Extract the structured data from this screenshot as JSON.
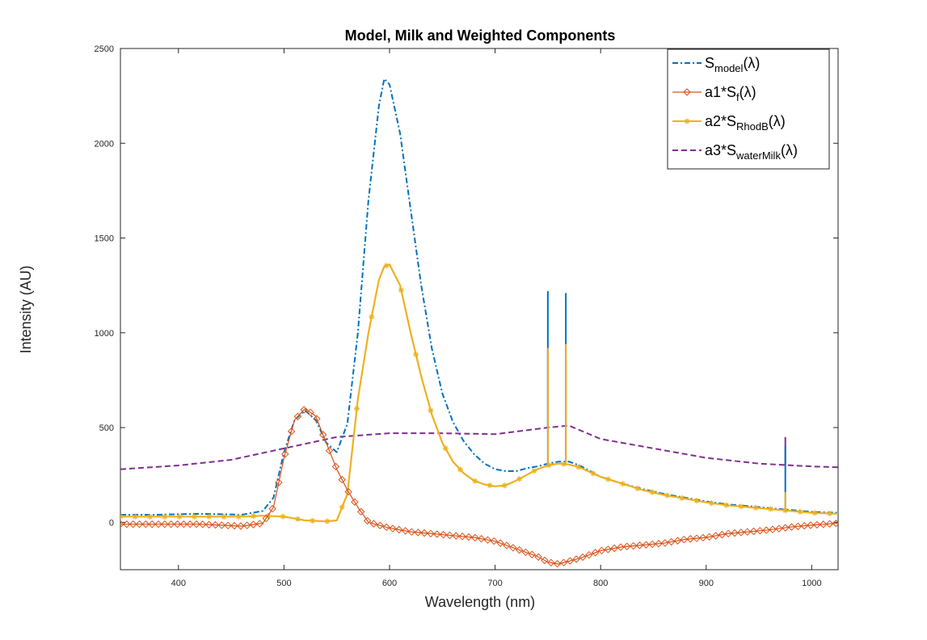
{
  "chart_data": {
    "type": "line",
    "title": "Model, Milk and Weighted Components",
    "xlabel": "Wavelength (nm)",
    "ylabel": "Intensity (AU)",
    "xlim": [
      345,
      1025
    ],
    "ylim": [
      -250,
      2500
    ],
    "xticks": [
      400,
      500,
      600,
      700,
      800,
      900,
      1000
    ],
    "yticks": [
      0,
      500,
      1000,
      1500,
      2000,
      2500
    ],
    "grid": false,
    "legend_position": "top-right",
    "series": [
      {
        "key": "model",
        "legend": {
          "base": "S",
          "sub": "model",
          "suffix": "(λ)"
        },
        "color": "#0072BD",
        "line_style": "dashdot",
        "marker": "none",
        "x": [
          345,
          380,
          420,
          460,
          480,
          490,
          500,
          510,
          520,
          530,
          540,
          550,
          560,
          570,
          580,
          590,
          595,
          600,
          610,
          620,
          630,
          640,
          650,
          660,
          670,
          680,
          690,
          700,
          710,
          720,
          730,
          740,
          750,
          760,
          770,
          780,
          790,
          800,
          820,
          840,
          860,
          880,
          900,
          920,
          940,
          960,
          980,
          1000,
          1025
        ],
        "y": [
          40,
          40,
          45,
          40,
          60,
          130,
          370,
          540,
          590,
          540,
          420,
          370,
          520,
          1000,
          1700,
          2200,
          2340,
          2310,
          2050,
          1650,
          1250,
          920,
          680,
          530,
          430,
          360,
          310,
          280,
          270,
          270,
          285,
          295,
          310,
          320,
          320,
          300,
          270,
          240,
          205,
          175,
          150,
          130,
          110,
          95,
          85,
          75,
          65,
          55,
          50
        ],
        "spikes": [
          {
            "x": 750,
            "y": 1220
          },
          {
            "x": 767,
            "y": 1210
          },
          {
            "x": 975,
            "y": 400
          }
        ]
      },
      {
        "key": "a1",
        "legend": {
          "base": "a1*S",
          "sub": "f",
          "suffix": "(λ)"
        },
        "color": "#D95319",
        "line_style": "solid",
        "marker": "diamond",
        "x": [
          345,
          380,
          420,
          460,
          480,
          490,
          500,
          510,
          520,
          530,
          540,
          550,
          560,
          570,
          580,
          600,
          620,
          640,
          660,
          680,
          700,
          720,
          740,
          750,
          760,
          780,
          800,
          820,
          840,
          860,
          880,
          900,
          920,
          940,
          960,
          980,
          1000,
          1025
        ],
        "y": [
          -10,
          -10,
          -10,
          -20,
          -5,
          80,
          340,
          540,
          600,
          560,
          420,
          280,
          170,
          80,
          0,
          -30,
          -50,
          -60,
          -70,
          -80,
          -100,
          -140,
          -180,
          -210,
          -220,
          -190,
          -150,
          -130,
          -120,
          -110,
          -90,
          -80,
          -60,
          -50,
          -40,
          -25,
          -15,
          -5
        ]
      },
      {
        "key": "a2",
        "legend": {
          "base": "a2*S",
          "sub": "RhodB",
          "suffix": "(λ)"
        },
        "color": "#EDB120",
        "line_style": "solid",
        "marker": "asterisk",
        "x": [
          345,
          380,
          420,
          460,
          480,
          500,
          520,
          540,
          550,
          560,
          570,
          580,
          590,
          595,
          600,
          610,
          620,
          630,
          640,
          650,
          660,
          670,
          680,
          690,
          700,
          710,
          720,
          730,
          740,
          750,
          760,
          770,
          780,
          790,
          800,
          820,
          840,
          860,
          880,
          900,
          920,
          940,
          960,
          980,
          1000,
          1025
        ],
        "y": [
          30,
          30,
          30,
          30,
          35,
          30,
          10,
          5,
          10,
          150,
          650,
          1000,
          1280,
          1350,
          1360,
          1250,
          1000,
          770,
          570,
          420,
          320,
          260,
          220,
          200,
          190,
          195,
          220,
          250,
          280,
          300,
          310,
          305,
          290,
          265,
          240,
          205,
          170,
          145,
          125,
          105,
          90,
          80,
          70,
          60,
          50,
          45
        ],
        "spikes": [
          {
            "x": 750,
            "y": 920
          },
          {
            "x": 767,
            "y": 940
          },
          {
            "x": 975,
            "y": 160
          }
        ]
      },
      {
        "key": "a3",
        "legend": {
          "base": "a3*S",
          "sub": "waterMilk",
          "suffix": "(λ)"
        },
        "color": "#7E2F8E",
        "line_style": "dashed",
        "marker": "none",
        "x": [
          345,
          400,
          450,
          500,
          550,
          600,
          650,
          700,
          750,
          770,
          800,
          850,
          900,
          950,
          1000,
          1025
        ],
        "y": [
          280,
          300,
          330,
          390,
          450,
          470,
          470,
          465,
          500,
          510,
          440,
          390,
          340,
          310,
          295,
          290
        ],
        "spikes": [
          {
            "x": 750,
            "y": 920
          },
          {
            "x": 767,
            "y": 860
          },
          {
            "x": 975,
            "y": 450
          }
        ]
      }
    ]
  }
}
